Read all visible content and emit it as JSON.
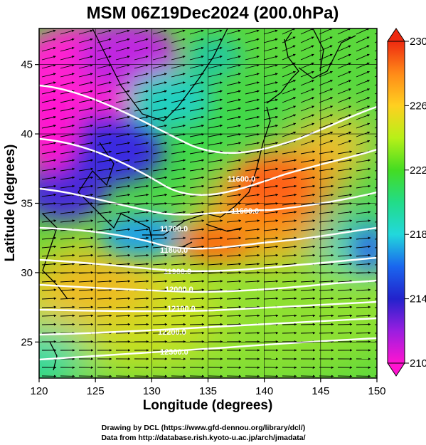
{
  "map_title": "MSM 06Z19Dec2024 (200.0hPa)",
  "x_axis": {
    "label": "Longitude (degrees)",
    "range": [
      120,
      150
    ],
    "ticks": [
      "120",
      "125",
      "130",
      "135",
      "140",
      "145",
      "150"
    ]
  },
  "y_axis": {
    "label": "Latitude  (degrees)",
    "range": [
      22.4,
      47.6
    ],
    "ticks": [
      "25",
      "30",
      "35",
      "40",
      "45"
    ]
  },
  "colorbar": {
    "min": 210,
    "max": 230,
    "ticks": [
      "210",
      "214",
      "218",
      "222",
      "226",
      "230"
    ]
  },
  "contours": [
    {
      "label": "11600.0"
    },
    {
      "label": "11600.0"
    },
    {
      "label": "11700.0"
    },
    {
      "label": "11800.0"
    },
    {
      "label": "11900.0"
    },
    {
      "label": "12000.0"
    },
    {
      "label": "12100.0"
    },
    {
      "label": "12200.0"
    },
    {
      "label": "12300.0"
    }
  ],
  "credits": {
    "line1": "Drawing by DCL (https://www.gfd-dennou.org/library/dcl/)",
    "line2": "Data from http://database.rish.kyoto-u.ac.jp/arch/jmadata/"
  },
  "colors": {
    "wind_arrow": "#000000",
    "contour": "#ffffff",
    "coastline": "#000000"
  }
}
